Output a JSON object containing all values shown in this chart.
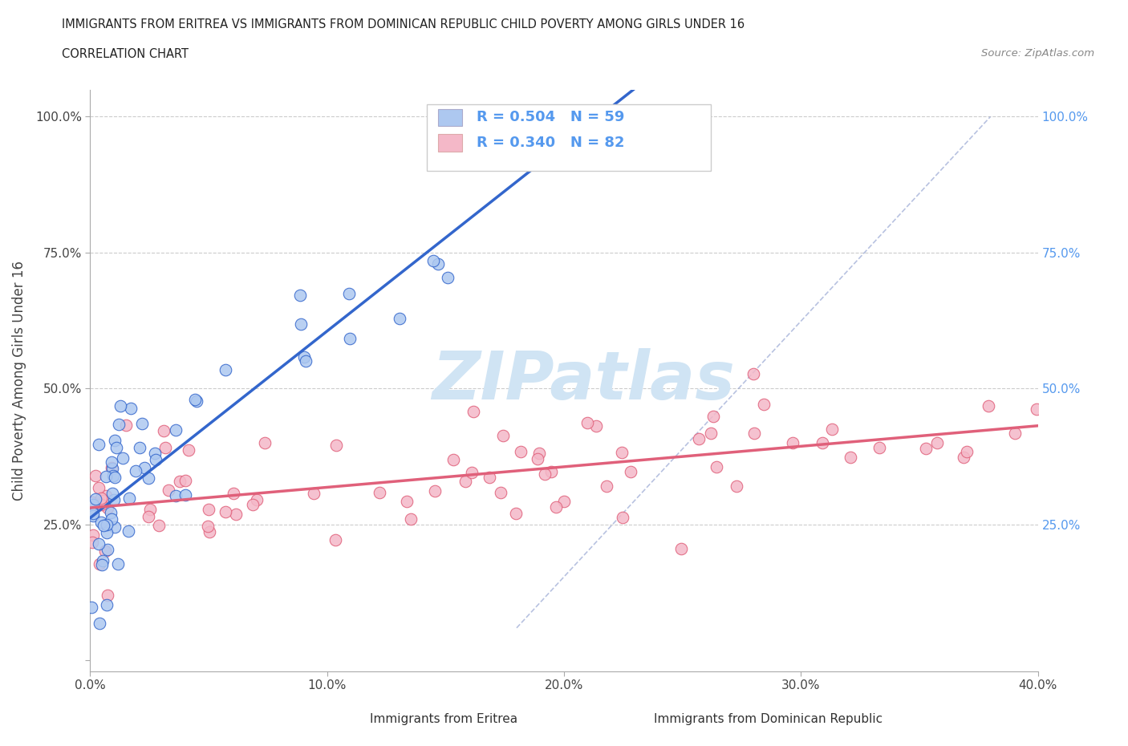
{
  "title": "IMMIGRANTS FROM ERITREA VS IMMIGRANTS FROM DOMINICAN REPUBLIC CHILD POVERTY AMONG GIRLS UNDER 16",
  "subtitle": "CORRELATION CHART",
  "source": "Source: ZipAtlas.com",
  "ylabel": "Child Poverty Among Girls Under 16",
  "r_eritrea": 0.504,
  "n_eritrea": 59,
  "r_dominican": 0.34,
  "n_dominican": 82,
  "color_eritrea": "#adc8f0",
  "color_dominican": "#f4b8c8",
  "line_color_eritrea": "#3366cc",
  "line_color_dominican": "#e0607a",
  "diagonal_color": "#aaaacc",
  "watermark_color": "#d0e4f4",
  "background_color": "#ffffff",
  "grid_color": "#cccccc",
  "right_tick_color": "#5599ee",
  "xlim": [
    0.0,
    0.4
  ],
  "ylim": [
    -0.02,
    1.05
  ],
  "xticks": [
    0.0,
    0.1,
    0.2,
    0.3,
    0.4
  ],
  "yticks": [
    0.0,
    0.25,
    0.5,
    0.75,
    1.0
  ],
  "legend_label_eritrea": "Immigrants from Eritrea",
  "legend_label_dominican": "Immigrants from Dominican Republic"
}
